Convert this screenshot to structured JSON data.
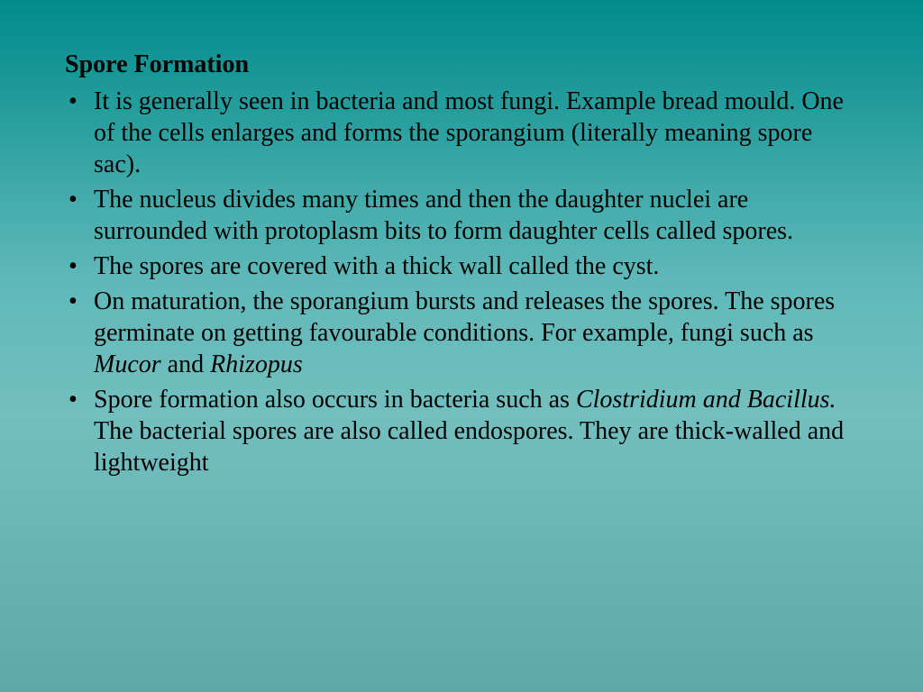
{
  "slide": {
    "title": "Spore Formation",
    "bullets": [
      {
        "segments": [
          {
            "text": "It is generally seen in bacteria and most fungi. Example bread mould. One of the cells enlarges and forms the sporangium (literally meaning spore sac).",
            "italic": false
          }
        ]
      },
      {
        "segments": [
          {
            "text": "The nucleus divides many times and then the daughter nuclei are surrounded with protoplasm bits to form daughter cells called spores.",
            "italic": false
          }
        ]
      },
      {
        "segments": [
          {
            "text": "The spores are covered with a thick wall called the cyst.",
            "italic": false
          }
        ]
      },
      {
        "segments": [
          {
            "text": "On maturation, the sporangium bursts and releases the spores. The spores germinate on getting favourable conditions. For example, fungi such as ",
            "italic": false
          },
          {
            "text": "Mucor",
            "italic": true
          },
          {
            "text": " and ",
            "italic": false
          },
          {
            "text": "Rhizopus",
            "italic": true
          }
        ]
      },
      {
        "segments": [
          {
            "text": "Spore formation also occurs in bacteria such as ",
            "italic": false
          },
          {
            "text": "Clostridium and Bacillus.",
            "italic": true
          },
          {
            "text": " The bacterial spores are also called endospores. They are thick-walled and lightweight",
            "italic": false
          }
        ]
      }
    ],
    "background_gradient": {
      "top": "#008b8b",
      "mid1": "#5fb8b8",
      "mid2": "#73bfbf",
      "bottom": "#5fa8a8"
    },
    "text_color": "#000000",
    "title_fontsize": 28,
    "body_fontsize": 28,
    "font_family": "Times New Roman"
  }
}
